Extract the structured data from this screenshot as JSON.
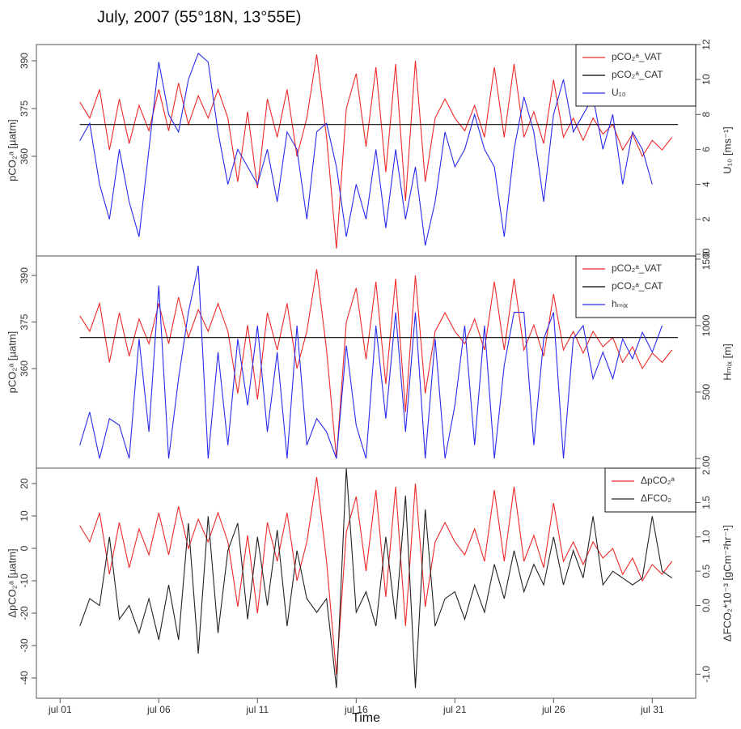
{
  "chart_data": [
    {
      "type": "line",
      "title": "July, 2007 (55°18N, 13°55E)",
      "ylabel": "pCO₂ᵃ [µatm]",
      "y2label": "U₁₀ [ms⁻¹]",
      "xlim": [
        -0.2,
        33.2
      ],
      "ylim": [
        328.7,
        395.1
      ],
      "yticks": [
        360,
        375,
        390
      ],
      "y2lim": [
        -0.1,
        12
      ],
      "y2ticks": [
        0,
        2,
        4,
        6,
        8,
        10,
        12
      ],
      "legend": "top-right",
      "x": [
        2,
        2.5,
        3,
        3.5,
        4,
        4.5,
        5,
        5.5,
        6,
        6.5,
        7,
        7.5,
        8,
        8.5,
        9,
        9.5,
        10,
        10.5,
        11,
        11.5,
        12,
        12.5,
        13,
        13.5,
        14,
        14.5,
        15,
        15.5,
        16,
        16.5,
        17,
        17.5,
        18,
        18.5,
        19,
        19.5,
        20,
        20.5,
        21,
        21.5,
        22,
        22.5,
        23,
        23.5,
        24,
        24.5,
        25,
        25.5,
        26,
        26.5,
        27,
        27.5,
        28,
        28.5,
        29,
        29.5,
        30,
        30.5,
        31,
        31.5,
        32
      ],
      "series": [
        {
          "name": "pCO₂ᵃ_VAT",
          "color": "#ee2a2a",
          "values": [
            377,
            372,
            381,
            362,
            378,
            364,
            376,
            368,
            381,
            368,
            383,
            370,
            379,
            372,
            381,
            372,
            352,
            374,
            350,
            378,
            366,
            381,
            360,
            372,
            392,
            366,
            331,
            375,
            386,
            363,
            388,
            355,
            389,
            346,
            390,
            352,
            372,
            378,
            372,
            368,
            376,
            366,
            388,
            366,
            389,
            366,
            374,
            364,
            384,
            366,
            372,
            365,
            372,
            367,
            370,
            362,
            367,
            360,
            365,
            362,
            366
          ]
        },
        {
          "name": "pCO₂ᵃ_CAT",
          "color": "#000000",
          "x": [
            2,
            32.3
          ],
          "values": [
            370,
            370
          ]
        },
        {
          "name": "U₁₀",
          "color": "#2a2aee",
          "axis": "y2",
          "values": [
            6.5,
            7.5,
            4,
            2,
            6,
            3,
            1,
            6,
            11,
            8,
            7,
            10,
            11.5,
            11,
            7,
            4,
            6,
            5,
            4,
            6,
            3,
            7,
            6,
            2,
            7,
            7.5,
            5,
            1,
            4,
            2,
            6,
            1.5,
            6,
            2,
            5,
            0.5,
            3,
            7,
            5,
            6,
            8,
            6,
            5,
            1,
            6,
            9,
            7,
            3,
            8,
            10,
            7,
            8,
            9,
            6,
            8,
            4,
            7,
            6,
            4,
            null,
            null
          ]
        }
      ]
    },
    {
      "type": "line",
      "ylabel": "pCO₂ᵃ [µatm]",
      "y2label": "Hₘᵢₓ [m]",
      "xlim": [
        -0.2,
        33.2
      ],
      "ylim": [
        327.9,
        396.3
      ],
      "yticks": [
        360,
        375,
        390
      ],
      "y2lim": [
        -73,
        1524
      ],
      "y2ticks": [
        0,
        500,
        1000,
        1500
      ],
      "legend": "top-right",
      "x": [
        2,
        2.5,
        3,
        3.5,
        4,
        4.5,
        5,
        5.5,
        6,
        6.5,
        7,
        7.5,
        8,
        8.5,
        9,
        9.5,
        10,
        10.5,
        11,
        11.5,
        12,
        12.5,
        13,
        13.5,
        14,
        14.5,
        15,
        15.5,
        16,
        16.5,
        17,
        17.5,
        18,
        18.5,
        19,
        19.5,
        20,
        20.5,
        21,
        21.5,
        22,
        22.5,
        23,
        23.5,
        24,
        24.5,
        25,
        25.5,
        26,
        26.5,
        27,
        27.5,
        28,
        28.5,
        29,
        29.5,
        30,
        30.5,
        31,
        31.5,
        32
      ],
      "series": [
        {
          "name": "pCO₂ᵃ_VAT",
          "color": "#ee2a2a",
          "values": [
            377,
            372,
            381,
            362,
            378,
            364,
            376,
            368,
            381,
            368,
            383,
            370,
            379,
            372,
            381,
            372,
            352,
            374,
            350,
            378,
            366,
            381,
            360,
            372,
            392,
            366,
            331,
            375,
            386,
            363,
            388,
            355,
            389,
            346,
            390,
            352,
            372,
            378,
            372,
            368,
            376,
            366,
            388,
            366,
            389,
            366,
            374,
            364,
            384,
            366,
            372,
            365,
            372,
            367,
            370,
            362,
            367,
            360,
            365,
            362,
            366
          ]
        },
        {
          "name": "pCO₂ᵃ_CAT",
          "color": "#000000",
          "x": [
            2,
            32.3
          ],
          "values": [
            370,
            370
          ]
        },
        {
          "name": "hₘᵢₓ",
          "color": "#2a2aee",
          "axis": "y2",
          "values": [
            100,
            350,
            0,
            300,
            250,
            0,
            900,
            200,
            1300,
            0,
            600,
            1100,
            1450,
            0,
            800,
            100,
            900,
            400,
            1000,
            200,
            800,
            0,
            1000,
            100,
            300,
            200,
            0,
            850,
            250,
            0,
            1000,
            300,
            1100,
            200,
            1100,
            0,
            900,
            0,
            400,
            1000,
            100,
            1000,
            0,
            700,
            1100,
            1100,
            100,
            900,
            1100,
            0,
            900,
            1000,
            600,
            800,
            600,
            900,
            750,
            950,
            800,
            1000,
            null
          ]
        }
      ]
    },
    {
      "type": "line",
      "ylabel": "ΔpCO₂ᵃ [µatm]",
      "y2label": "ΔFCO₂*10⁻³ [gCm⁻²hr⁻¹]",
      "xlabel": "Time",
      "xlim": [
        -0.2,
        33.2
      ],
      "ylim": [
        -46.25,
        24.75
      ],
      "yticks": [
        20,
        10,
        0,
        -10,
        -20,
        -30,
        -40
      ],
      "y2lim": [
        -1.35,
        2.0
      ],
      "y2ticks": [
        {
          "value": 2,
          "label": "2.0"
        },
        {
          "value": 1.5,
          "label": "1.5"
        },
        {
          "value": 1,
          "label": "1.0"
        },
        {
          "value": 0.5,
          "label": "0.5"
        },
        {
          "value": 0,
          "label": "0.0"
        },
        {
          "value": -1,
          "label": "-1.0"
        }
      ],
      "xticks": [
        {
          "value": 1,
          "label": "jul 01"
        },
        {
          "value": 6,
          "label": "jul 06"
        },
        {
          "value": 11,
          "label": "jul 11"
        },
        {
          "value": 16,
          "label": "jul 16"
        },
        {
          "value": 21,
          "label": "jul 21"
        },
        {
          "value": 26,
          "label": "jul 26"
        },
        {
          "value": 31,
          "label": "jul 31"
        }
      ],
      "legend": "top-right",
      "x": [
        2,
        2.5,
        3,
        3.5,
        4,
        4.5,
        5,
        5.5,
        6,
        6.5,
        7,
        7.5,
        8,
        8.5,
        9,
        9.5,
        10,
        10.5,
        11,
        11.5,
        12,
        12.5,
        13,
        13.5,
        14,
        14.5,
        15,
        15.5,
        16,
        16.5,
        17,
        17.5,
        18,
        18.5,
        19,
        19.5,
        20,
        20.5,
        21,
        21.5,
        22,
        22.5,
        23,
        23.5,
        24,
        24.5,
        25,
        25.5,
        26,
        26.5,
        27,
        27.5,
        28,
        28.5,
        29,
        29.5,
        30,
        30.5,
        31,
        31.5,
        32
      ],
      "series": [
        {
          "name": "ΔpCO₂ᵃ",
          "color": "#ee2a2a",
          "values": [
            7,
            2,
            11,
            -8,
            8,
            -6,
            6,
            -2,
            11,
            -2,
            13,
            0,
            9,
            2,
            11,
            2,
            -18,
            4,
            -20,
            8,
            -4,
            11,
            -10,
            2,
            22,
            -4,
            -39,
            5,
            16,
            -7,
            18,
            -15,
            19,
            -24,
            20,
            -18,
            2,
            8,
            2,
            -2,
            6,
            -4,
            18,
            -4,
            19,
            -4,
            4,
            -6,
            14,
            -4,
            2,
            -5,
            2,
            -3,
            0,
            -8,
            -3,
            -10,
            -5,
            -8,
            -4
          ]
        },
        {
          "name": "ΔFCO₂",
          "color": "#222222",
          "axis": "y2",
          "values": [
            -0.3,
            0.1,
            0,
            1.0,
            -0.2,
            0,
            -0.4,
            0.1,
            -0.5,
            0.3,
            -0.5,
            1.2,
            -0.7,
            1.3,
            -0.4,
            0.8,
            1.2,
            -0.2,
            1.0,
            0.0,
            1.1,
            -0.3,
            0.8,
            0.1,
            -0.1,
            0.1,
            -1.2,
            2.0,
            -0.1,
            0.2,
            -0.3,
            1.0,
            -0.2,
            1.6,
            -1.2,
            1.4,
            -0.3,
            0.1,
            0.2,
            -0.2,
            0.3,
            -0.1,
            0.6,
            0.1,
            0.8,
            0.2,
            0.6,
            0.3,
            1.0,
            0.3,
            0.8,
            0.4,
            1.3,
            0.3,
            0.5,
            0.4,
            0.3,
            0.4,
            1.3,
            0.5,
            0.4
          ]
        }
      ]
    }
  ]
}
